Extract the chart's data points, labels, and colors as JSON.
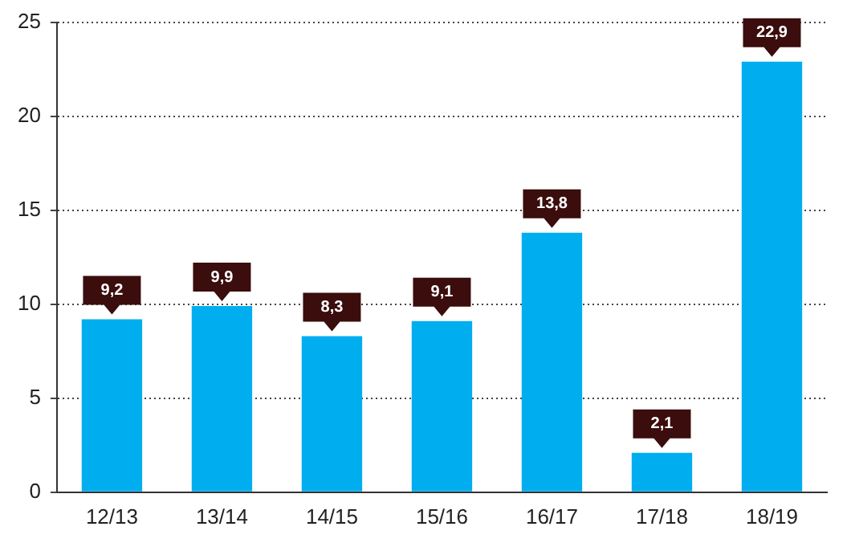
{
  "chart_data": {
    "type": "bar",
    "categories": [
      "12/13",
      "13/14",
      "14/15",
      "15/16",
      "16/17",
      "17/18",
      "18/19"
    ],
    "values": [
      9.2,
      9.9,
      8.3,
      9.1,
      13.8,
      2.1,
      22.9
    ],
    "value_labels": [
      "9,2",
      "9,9",
      "8,3",
      "9,1",
      "13,8",
      "2,1",
      "22,9"
    ],
    "color": "#00aeef",
    "ylim": [
      0,
      25
    ],
    "yticks": [
      0,
      5,
      10,
      15,
      20,
      25
    ],
    "grid": "y",
    "legend": false
  }
}
